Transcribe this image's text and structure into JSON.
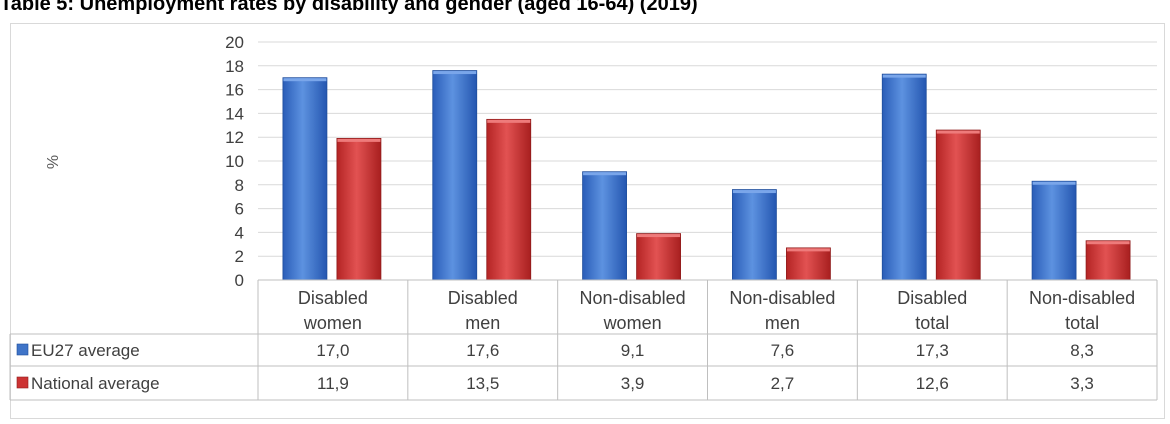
{
  "title": "Table 5: Unemployment rates by disability and gender (aged 16-64) (2019)",
  "chart_data": {
    "type": "bar",
    "title": "Table 5: Unemployment rates by disability and gender (aged 16-64) (2019)",
    "ylabel": "%",
    "xlabel": "",
    "ylim": [
      0,
      20
    ],
    "yticks": [
      "0",
      "2",
      "4",
      "6",
      "8",
      "10",
      "12",
      "14",
      "16",
      "18",
      "20"
    ],
    "grid": true,
    "legend": "data-table",
    "categories": [
      [
        "Disabled",
        "women"
      ],
      [
        "Disabled",
        "men"
      ],
      [
        "Non-disabled",
        "women"
      ],
      [
        "Non-disabled",
        "men"
      ],
      [
        "Disabled",
        "total"
      ],
      [
        "Non-disabled",
        "total"
      ]
    ],
    "series": [
      {
        "name": "EU27 average",
        "color": "#4a7fd0",
        "values": [
          17.0,
          17.6,
          9.1,
          7.6,
          17.3,
          8.3
        ],
        "labels": [
          "17,0",
          "17,6",
          "9,1",
          "7,6",
          "17,3",
          "8,3"
        ]
      },
      {
        "name": "National average",
        "color": "#d23a3a",
        "values": [
          11.9,
          13.5,
          3.9,
          2.7,
          12.6,
          3.3
        ],
        "labels": [
          "11,9",
          "13,5",
          "3,9",
          "2,7",
          "12,6",
          "3,3"
        ]
      }
    ]
  }
}
